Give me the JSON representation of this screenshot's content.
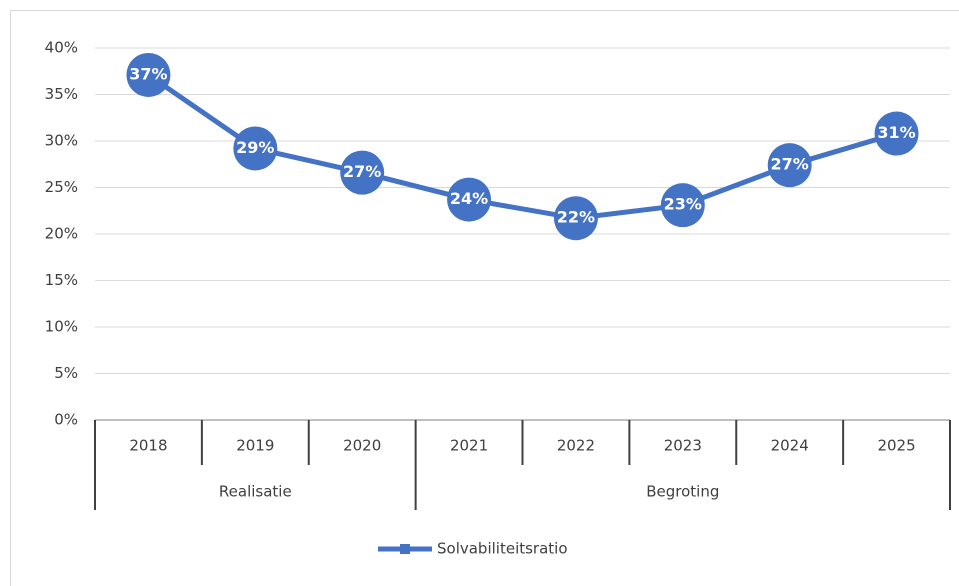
{
  "chart_data": {
    "type": "line",
    "categories": [
      "2018",
      "2019",
      "2020",
      "2021",
      "2022",
      "2023",
      "2024",
      "2025"
    ],
    "groups": [
      {
        "label": "Realisatie",
        "count": 3
      },
      {
        "label": "Begroting",
        "count": 5
      }
    ],
    "series": [
      {
        "name": "Solvabiliteitsratio",
        "color": "#4472c4",
        "values": [
          37.1,
          29.2,
          26.6,
          23.7,
          21.7,
          23.1,
          27.4,
          30.8
        ],
        "value_labels": [
          "37%",
          "29%",
          "27%",
          "24%",
          "22%",
          "23%",
          "27%",
          "31%"
        ]
      }
    ],
    "ylim": [
      0,
      40
    ],
    "yticks": [
      {
        "value": 0,
        "label": "0%"
      },
      {
        "value": 5,
        "label": "5%"
      },
      {
        "value": 10,
        "label": "10%"
      },
      {
        "value": 15,
        "label": "15%"
      },
      {
        "value": 20,
        "label": "20%"
      },
      {
        "value": 25,
        "label": "25%"
      },
      {
        "value": 30,
        "label": "30%"
      },
      {
        "value": 35,
        "label": "35%"
      },
      {
        "value": 40,
        "label": "40%"
      }
    ],
    "grid": true,
    "legend": "bottom"
  }
}
